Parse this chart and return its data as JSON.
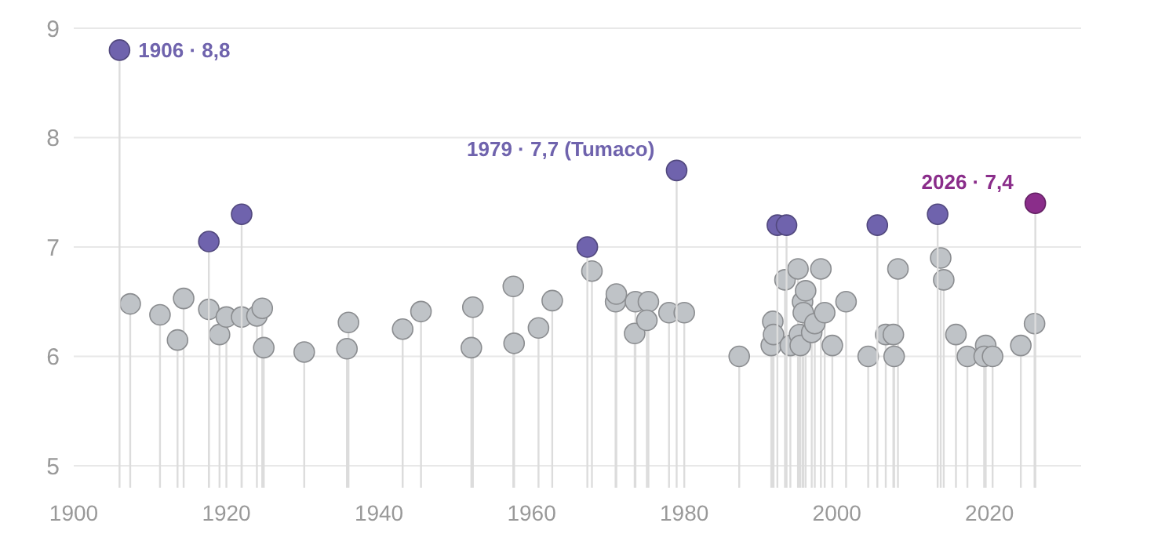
{
  "chart_data": {
    "type": "lollipop",
    "xlim": [
      1900,
      2032
    ],
    "xticks": [
      1900,
      1920,
      1940,
      1960,
      1980,
      2000,
      2020
    ],
    "ylim": [
      4.8,
      9
    ],
    "yticks": [
      5,
      6,
      7,
      8,
      9
    ],
    "grid": "y",
    "marker": "circle",
    "series": [
      {
        "color": "#bfc3c7",
        "x": [
          1907.4,
          1911.3,
          1913.6,
          1914.4,
          1917.7,
          1919.1,
          1920,
          1922,
          1924,
          1924.7,
          1924.9,
          1930.2,
          1935.8,
          1936,
          1943.1,
          1945.5,
          1952.3,
          1952.1,
          1957.6,
          1957.7,
          1960.9,
          1962.7,
          1967.9,
          1971,
          1971.1,
          1973.5,
          1973.6,
          1975.3,
          1975.1,
          1978,
          1980,
          1987.2,
          1991.4,
          1991.6,
          1991.7,
          1993.2,
          1993.9,
          1994.9,
          1995.1,
          1995.2,
          1995.5,
          1995.6,
          1995.9,
          1996.7,
          1997.1,
          1997.9,
          1998.4,
          1999.4,
          2001.2,
          2004.1,
          2006.4,
          2007.4,
          2007.5,
          2008,
          2013.6,
          2014,
          2015.6,
          2017.1,
          2019.5,
          2019.3,
          2020.4,
          2024.1,
          2025.9
        ],
        "values": [
          6.48,
          6.38,
          6.15,
          6.53,
          6.43,
          6.2,
          6.36,
          6.36,
          6.37,
          6.44,
          6.08,
          6.04,
          6.07,
          6.31,
          6.25,
          6.41,
          6.45,
          6.08,
          6.64,
          6.12,
          6.26,
          6.51,
          6.78,
          6.5,
          6.57,
          6.21,
          6.5,
          6.5,
          6.33,
          6.4,
          6.4,
          6.0,
          6.1,
          6.32,
          6.2,
          6.7,
          6.1,
          6.8,
          6.2,
          6.1,
          6.5,
          6.4,
          6.6,
          6.22,
          6.3,
          6.8,
          6.4,
          6.1,
          6.5,
          6.0,
          6.2,
          6.2,
          6.0,
          6.8,
          6.9,
          6.7,
          6.2,
          6.0,
          6.1,
          6.0,
          6.0,
          6.1,
          6.3
        ]
      },
      {
        "color": "#6f63ad",
        "x": [
          1906,
          1917.7,
          1922,
          1967.3,
          1979,
          1992.2,
          1993.4,
          2005.3,
          2013.2
        ],
        "values": [
          8.8,
          7.05,
          7.3,
          7.0,
          7.7,
          7.2,
          7.2,
          7.2,
          7.3
        ]
      },
      {
        "color": "#8a2d8a",
        "x": [
          2026
        ],
        "values": [
          7.4
        ]
      }
    ],
    "annotations": [
      {
        "text": "1906 · 8,8",
        "x": 1906,
        "y": 8.8
      },
      {
        "text": "1979 · 7,7 (Tumaco)",
        "x": 1979,
        "y": 7.7
      },
      {
        "text": "2026 · 7,4",
        "x": 2026,
        "y": 7.4
      }
    ]
  }
}
